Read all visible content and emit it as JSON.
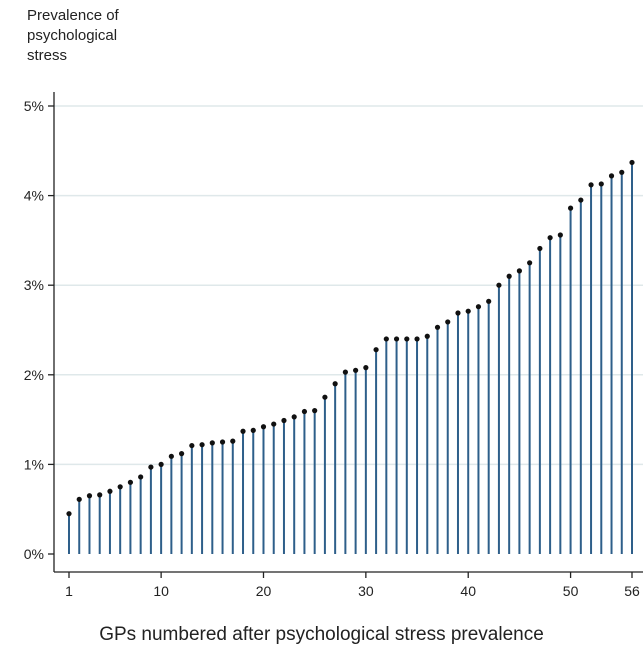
{
  "chart_data": {
    "type": "lollipop",
    "ylabel_lines": [
      "Prevalence of",
      "psychological",
      "stress"
    ],
    "xlabel": "GPs numbered after psychological stress prevalence",
    "x_ticks": [
      1,
      10,
      20,
      30,
      40,
      50,
      56
    ],
    "y_ticks": [
      "0%",
      "1%",
      "2%",
      "3%",
      "4%",
      "5%"
    ],
    "ylim": [
      0,
      5
    ],
    "xlim": [
      1,
      56
    ],
    "stem_color": "#2e5f8a",
    "marker_color": "#111111",
    "grid_color": "#dfe8ea",
    "values": [
      0.45,
      0.61,
      0.65,
      0.66,
      0.7,
      0.75,
      0.8,
      0.86,
      0.97,
      1.0,
      1.09,
      1.12,
      1.21,
      1.22,
      1.24,
      1.25,
      1.26,
      1.37,
      1.38,
      1.42,
      1.45,
      1.49,
      1.53,
      1.59,
      1.6,
      1.75,
      1.9,
      2.03,
      2.05,
      2.08,
      2.28,
      2.4,
      2.4,
      2.4,
      2.4,
      2.43,
      2.53,
      2.59,
      2.69,
      2.71,
      2.76,
      2.82,
      3.0,
      3.1,
      3.16,
      3.25,
      3.41,
      3.53,
      3.56,
      3.86,
      3.95,
      4.12,
      4.13,
      4.22,
      4.26,
      4.37
    ]
  }
}
